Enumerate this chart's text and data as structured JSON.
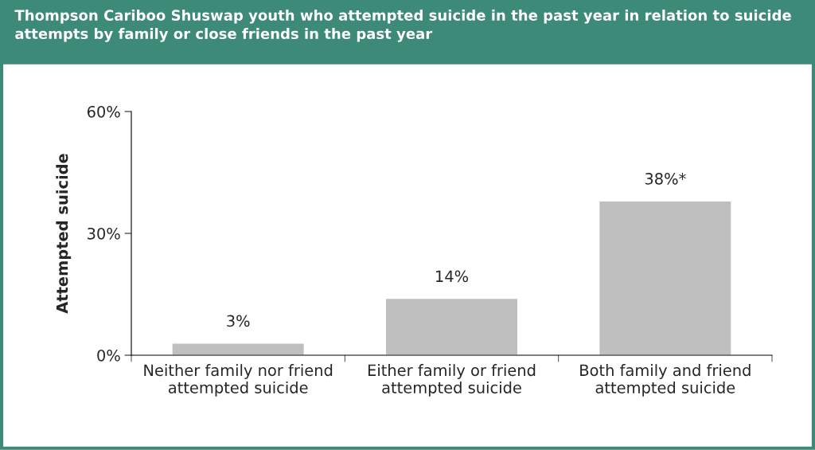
{
  "chart_data": {
    "type": "bar",
    "title": "Thompson Cariboo Shuswap youth who attempted suicide in the past year in relation to suicide attempts by family or close friends in the past year",
    "ylabel": "Attempted suicide",
    "categories": [
      "Neither family nor friend\nattempted suicide",
      "Either family or friend\nattempted suicide",
      "Both family and friend\nattempted suicide"
    ],
    "values": [
      3,
      14,
      38
    ],
    "value_labels": [
      "3%",
      "14%",
      "38%*"
    ],
    "color": "#bfbfbf",
    "ylim": [
      0,
      60
    ],
    "yticks": [
      {
        "value": 0,
        "label": "0%"
      },
      {
        "value": 30,
        "label": "30%"
      },
      {
        "value": 60,
        "label": "60%"
      }
    ],
    "grid": false
  }
}
